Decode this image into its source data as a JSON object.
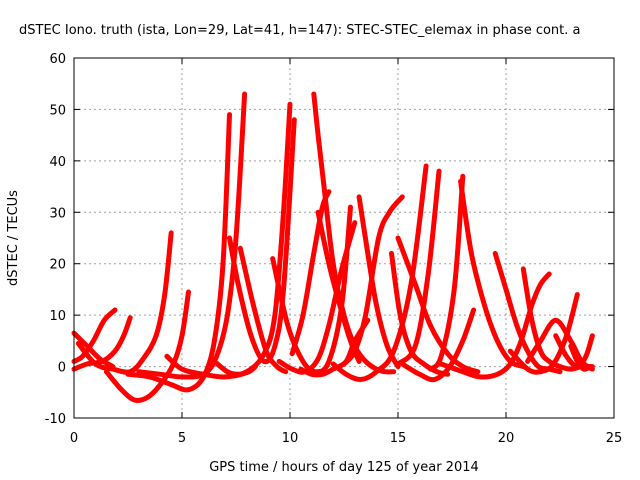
{
  "chart_data": {
    "type": "scatter",
    "title": "dSTEC Iono. truth (ista, Lon=29, Lat=41, h=147): STEC-STEC_elemax in phase cont. a",
    "xlabel": "GPS time / hours of day 125 of year 2014",
    "ylabel": "dSTEC  / TECUs",
    "xlim": [
      0,
      25
    ],
    "ylim": [
      -10,
      60
    ],
    "xticks": [
      0,
      5,
      10,
      15,
      20,
      25
    ],
    "yticks": [
      -10,
      0,
      10,
      20,
      30,
      40,
      50,
      60
    ],
    "grid": true,
    "marker": "+",
    "color": "#ff0000",
    "series": [
      {
        "x": [
          0.0,
          0.6,
          1.2,
          1.8
        ],
        "y": [
          6.5,
          4.0,
          1.5,
          0.0
        ]
      },
      {
        "x": [
          0.0,
          0.4,
          0.9,
          1.4,
          1.9
        ],
        "y": [
          1.0,
          2.0,
          5.0,
          9.0,
          11.0
        ]
      },
      {
        "x": [
          0.0,
          0.6,
          1.3,
          1.9,
          2.3,
          2.6
        ],
        "y": [
          -0.5,
          0.5,
          1.0,
          3.0,
          6.0,
          9.5
        ]
      },
      {
        "x": [
          0.2,
          1.0,
          1.8,
          2.6,
          3.2,
          3.8,
          4.2,
          4.5
        ],
        "y": [
          4.5,
          0.5,
          -0.5,
          -1.0,
          1.5,
          6.0,
          14.0,
          26.0
        ]
      },
      {
        "x": [
          1.5,
          2.2,
          2.8,
          3.4,
          4.0,
          4.6,
          5.0,
          5.3
        ],
        "y": [
          -1.0,
          -4.5,
          -6.5,
          -6.0,
          -3.5,
          0.5,
          6.0,
          14.5
        ]
      },
      {
        "x": [
          2.5,
          3.5,
          4.5,
          5.3,
          6.0,
          6.5,
          6.9,
          7.2
        ],
        "y": [
          -1.5,
          -2.0,
          -3.5,
          -4.5,
          -2.0,
          5.0,
          20.0,
          49.0
        ]
      },
      {
        "x": [
          3.0,
          4.0,
          5.0,
          6.0,
          6.6,
          7.1,
          7.5,
          7.9
        ],
        "y": [
          -1.0,
          -1.5,
          -2.0,
          -1.5,
          2.0,
          10.0,
          25.0,
          53.0
        ]
      },
      {
        "x": [
          7.2,
          7.6,
          8.2,
          8.8,
          9.3,
          9.7,
          10.2
        ],
        "y": [
          25.0,
          16.0,
          6.0,
          1.0,
          4.0,
          15.0,
          48.0
        ]
      },
      {
        "x": [
          7.7,
          8.3,
          8.9,
          9.4,
          9.8
        ],
        "y": [
          23.0,
          12.0,
          3.0,
          0.0,
          -1.0
        ]
      },
      {
        "x": [
          4.3,
          5.0,
          6.0,
          7.0,
          8.0,
          8.8,
          9.3,
          9.7,
          10.0
        ],
        "y": [
          2.0,
          -0.5,
          -1.5,
          -2.0,
          -1.0,
          2.5,
          10.0,
          30.0,
          51.0
        ]
      },
      {
        "x": [
          6.5,
          7.1,
          7.6,
          8.1,
          8.4
        ],
        "y": [
          1.0,
          -1.0,
          -1.5,
          -1.0,
          0.0
        ]
      },
      {
        "x": [
          9.2,
          9.9,
          10.6,
          11.2,
          11.8,
          12.4,
          12.8
        ],
        "y": [
          21.0,
          8.0,
          1.0,
          -1.0,
          1.0,
          12.0,
          31.0
        ]
      },
      {
        "x": [
          9.5,
          10.1,
          10.7,
          11.3,
          11.8,
          12.4,
          13.0
        ],
        "y": [
          1.0,
          -0.5,
          -1.0,
          1.5,
          8.0,
          19.0,
          28.0
        ]
      },
      {
        "x": [
          11.1,
          11.3,
          11.6,
          12.0,
          12.5,
          13.0,
          13.5,
          14.0,
          14.4,
          14.8
        ],
        "y": [
          53.0,
          45.0,
          34.0,
          20.0,
          10.0,
          4.0,
          1.0,
          -0.5,
          -1.0,
          -1.0
        ]
      },
      {
        "x": [
          10.1,
          10.6,
          11.1,
          11.5,
          11.8
        ],
        "y": [
          2.5,
          10.0,
          22.0,
          31.0,
          34.0
        ]
      },
      {
        "x": [
          11.3,
          11.8,
          12.3,
          12.8,
          13.2
        ],
        "y": [
          30.0,
          20.0,
          12.0,
          5.0,
          1.0
        ]
      },
      {
        "x": [
          10.5,
          11.0,
          11.5,
          12.0,
          12.6,
          13.0,
          13.6
        ],
        "y": [
          -0.5,
          -1.5,
          -1.5,
          -0.5,
          1.0,
          5.0,
          9.0
        ]
      },
      {
        "x": [
          12.5,
          13.0,
          13.5,
          14.1,
          14.6,
          15.2
        ],
        "y": [
          0.5,
          3.0,
          10.0,
          25.0,
          30.0,
          33.0
        ]
      },
      {
        "x": [
          13.2,
          13.6,
          14.0,
          14.5,
          15.0
        ],
        "y": [
          33.0,
          22.0,
          12.0,
          4.0,
          0.0
        ]
      },
      {
        "x": [
          12.0,
          12.6,
          13.3,
          14.0,
          14.8,
          15.6,
          16.3
        ],
        "y": [
          0.5,
          -1.5,
          -2.5,
          -1.0,
          3.0,
          16.0,
          39.0
        ]
      },
      {
        "x": [
          14.7,
          15.1,
          15.6,
          16.2,
          16.8,
          17.3
        ],
        "y": [
          22.0,
          10.0,
          3.0,
          0.5,
          -1.0,
          -1.5
        ]
      },
      {
        "x": [
          15.0,
          15.8,
          16.5,
          17.3,
          18.0,
          18.7
        ],
        "y": [
          25.0,
          16.0,
          8.0,
          2.5,
          0.0,
          -1.0
        ]
      },
      {
        "x": [
          15.0,
          15.8,
          16.4,
          16.9
        ],
        "y": [
          0.5,
          4.0,
          18.0,
          38.0
        ]
      },
      {
        "x": [
          15.2,
          16.0,
          16.7,
          17.4,
          18.0,
          18.5
        ],
        "y": [
          0.5,
          -1.5,
          -2.5,
          0.0,
          5.0,
          11.0
        ]
      },
      {
        "x": [
          16.5,
          17.0,
          17.6,
          18.0
        ],
        "y": [
          -0.5,
          2.0,
          15.0,
          37.0
        ]
      },
      {
        "x": [
          17.9,
          18.4,
          19.0,
          19.6,
          20.2,
          20.8
        ],
        "y": [
          36.0,
          22.0,
          12.0,
          5.0,
          1.0,
          0.0
        ]
      },
      {
        "x": [
          17.0,
          18.0,
          18.8,
          19.6,
          20.2,
          20.7,
          21.2,
          21.6,
          22.0
        ],
        "y": [
          0.5,
          -1.0,
          -2.0,
          -1.5,
          0.5,
          5.0,
          12.0,
          16.0,
          18.0
        ]
      },
      {
        "x": [
          19.5,
          20.0,
          20.5,
          21.0,
          21.5,
          22.0,
          22.5
        ],
        "y": [
          22.0,
          15.0,
          8.0,
          3.0,
          0.0,
          -0.5,
          -1.0
        ]
      },
      {
        "x": [
          20.8,
          21.2,
          21.6,
          22.0,
          22.5,
          23.0,
          23.5,
          24.0
        ],
        "y": [
          19.0,
          9.0,
          3.0,
          1.0,
          0.0,
          -0.5,
          0.0,
          0.0
        ]
      },
      {
        "x": [
          20.2,
          21.0,
          21.6,
          22.2,
          22.8,
          23.3
        ],
        "y": [
          3.0,
          -0.5,
          -1.0,
          0.5,
          6.0,
          14.0
        ]
      },
      {
        "x": [
          21.0,
          21.6,
          22.3,
          23.0,
          23.5,
          24.0
        ],
        "y": [
          1.0,
          5.0,
          9.0,
          5.0,
          1.0,
          -0.5
        ]
      },
      {
        "x": [
          22.3,
          22.8,
          23.3,
          23.7,
          24.0
        ],
        "y": [
          6.0,
          2.0,
          0.0,
          2.0,
          6.0
        ]
      },
      {
        "x": [
          23.0,
          23.3,
          23.6,
          23.9
        ],
        "y": [
          4.0,
          1.0,
          -0.5,
          0.0
        ]
      }
    ]
  }
}
